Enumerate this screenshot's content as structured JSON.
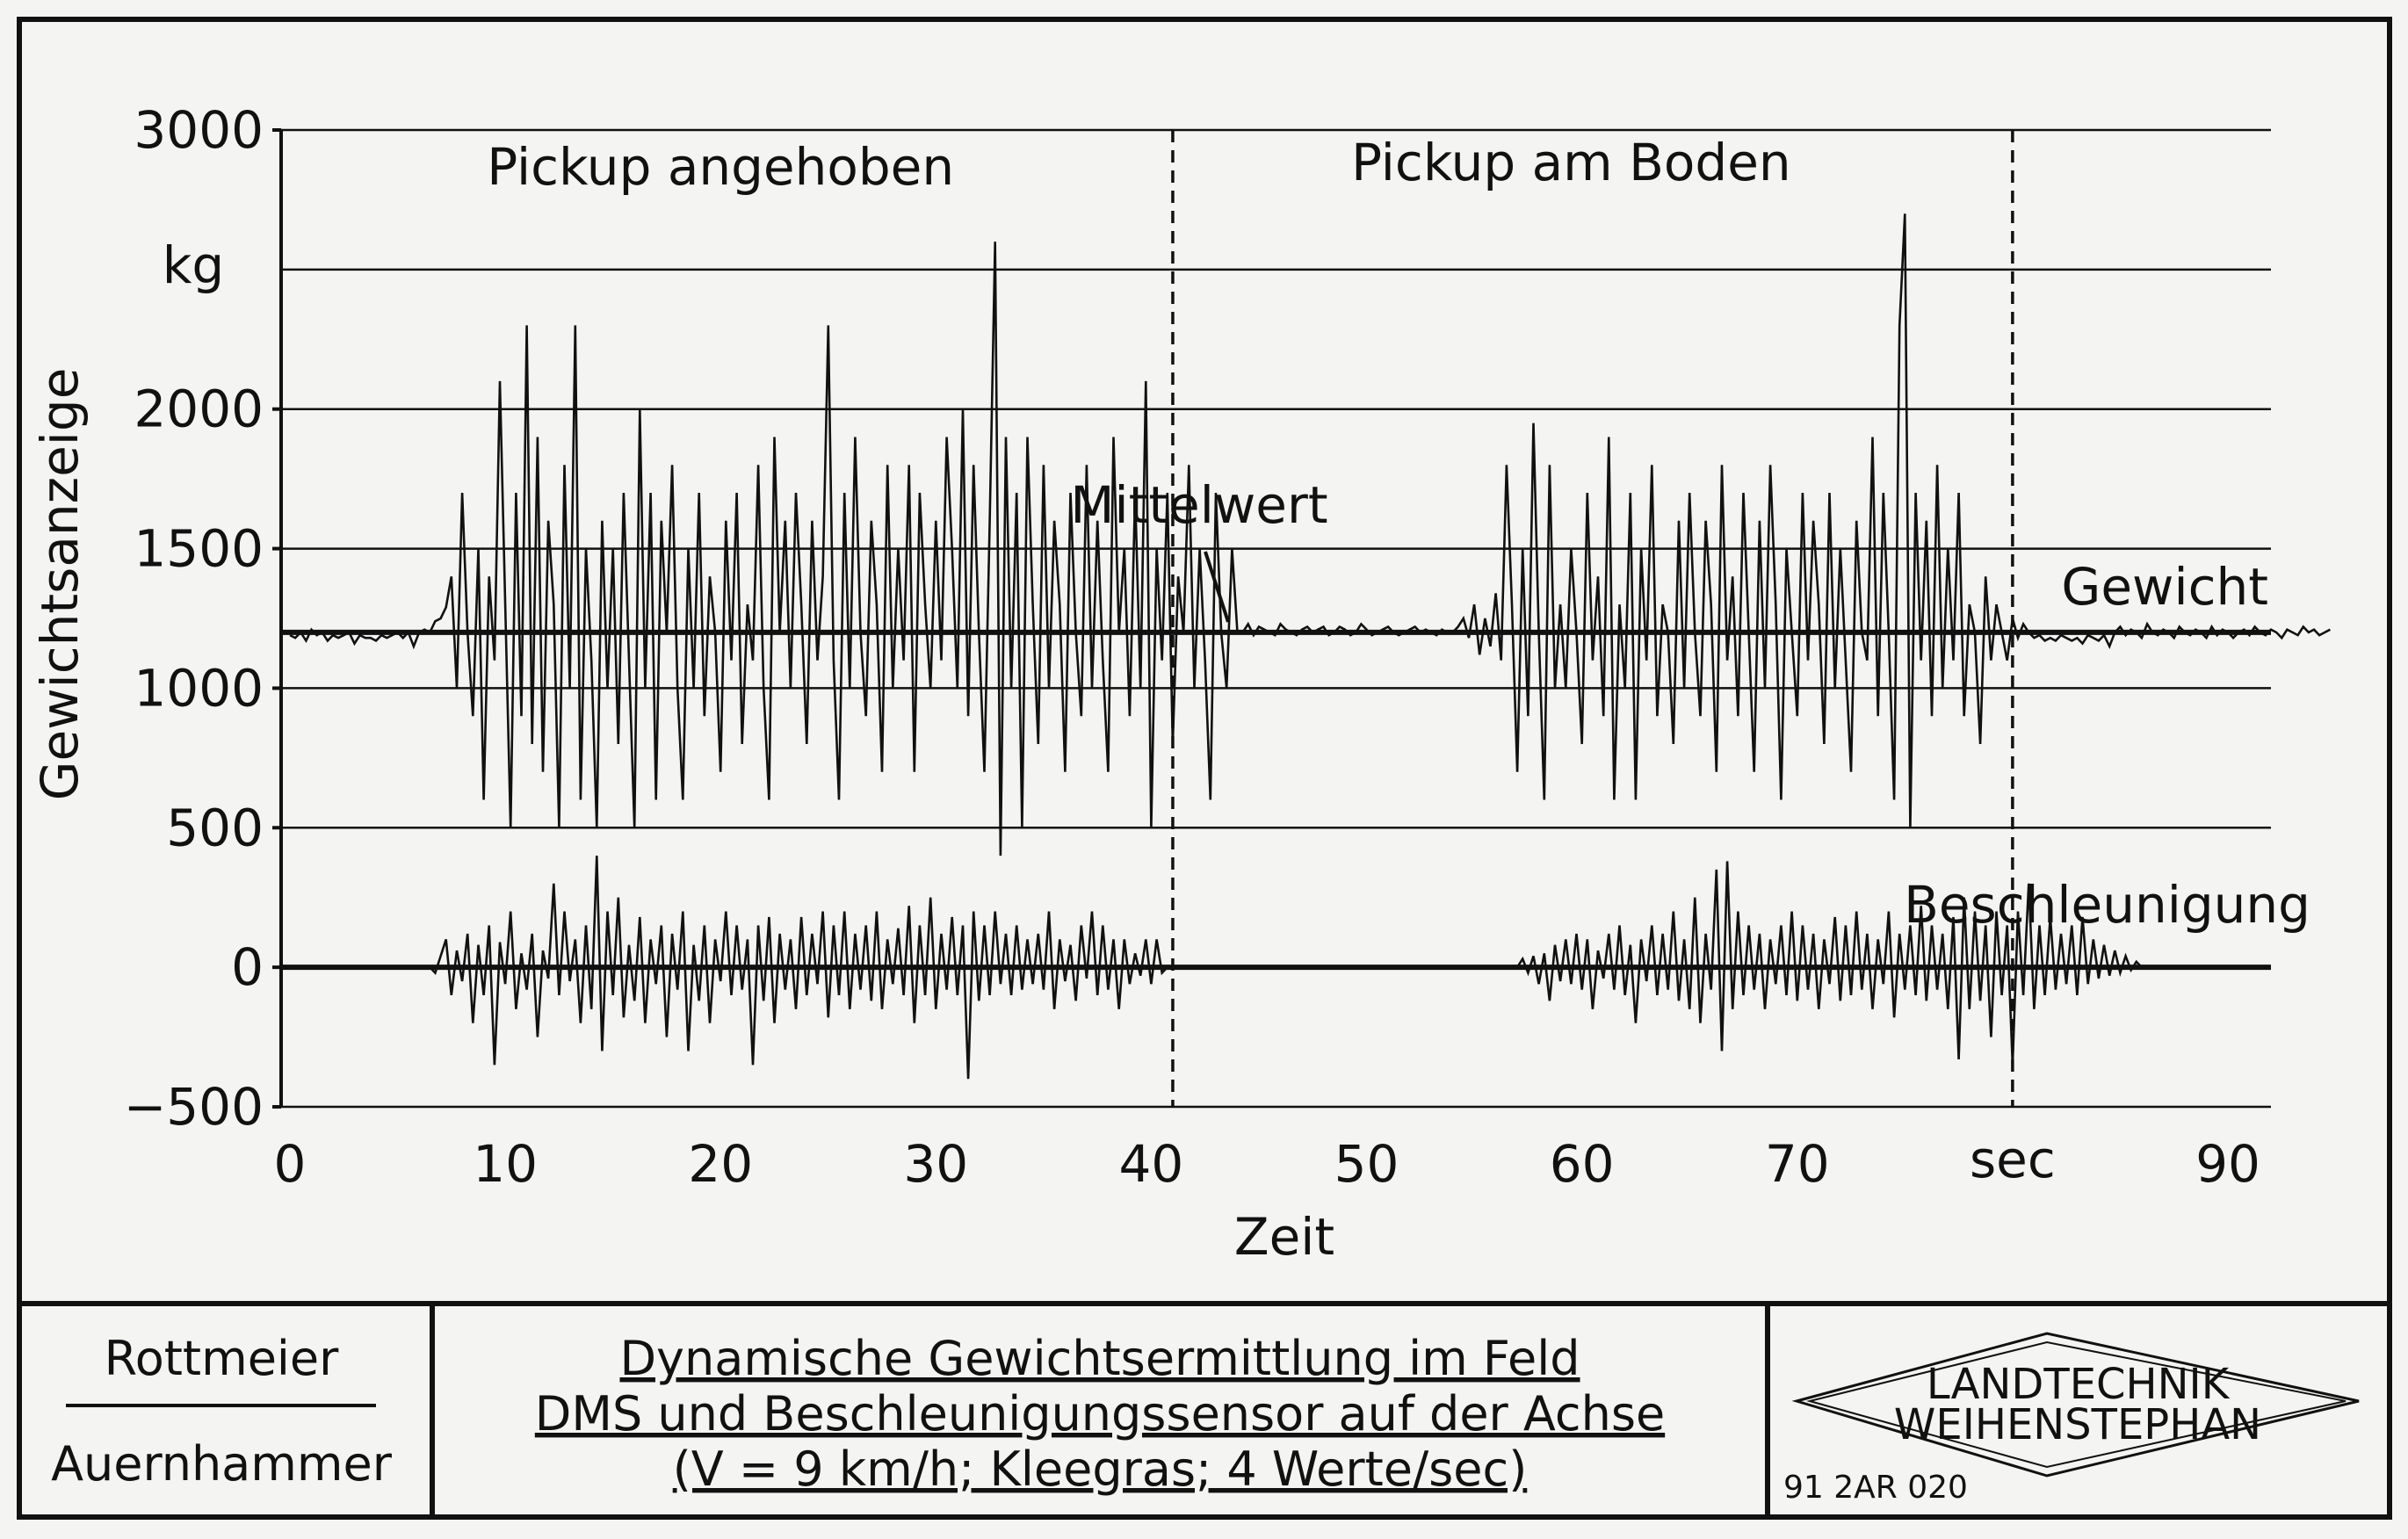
{
  "chart_data": {
    "type": "line",
    "ylabel": "Gewichtsanzeige",
    "yunit": "kg",
    "xlabel": "Zeit",
    "xunit": "sec",
    "ylim": [
      -500,
      3000
    ],
    "xlim": [
      0,
      92
    ],
    "yticks": [
      3000,
      2000,
      1500,
      1000,
      500,
      0,
      -500
    ],
    "ytick_labels": [
      "3000",
      "2000",
      "1500",
      "1000",
      "500",
      "0",
      "−500"
    ],
    "xticks": [
      0,
      10,
      20,
      30,
      40,
      50,
      60,
      70,
      90
    ],
    "xtick_labels": [
      "0",
      "10",
      "20",
      "30",
      "40",
      "50",
      "60",
      "70",
      "90"
    ],
    "xunit_position": 80,
    "gridlines_y": [
      3000,
      2500,
      2000,
      1500,
      1000,
      500,
      0,
      -500
    ],
    "vlines": [
      41,
      80
    ],
    "mean_weight": 1200,
    "phases": [
      {
        "label": "Pickup angehoben",
        "x_center": 20
      },
      {
        "label": "Pickup am Boden",
        "x_center": 59.5
      }
    ],
    "annotations": {
      "mittelwert": "Mittelwert",
      "gewicht": "Gewicht",
      "beschleunigung": "Beschleunigung"
    },
    "series": [
      {
        "name": "Gewicht",
        "x_start": 0,
        "x_step": 0.25,
        "values": [
          1190,
          1180,
          1200,
          1170,
          1210,
          1190,
          1200,
          1170,
          1190,
          1180,
          1190,
          1200,
          1160,
          1190,
          1180,
          1180,
          1170,
          1190,
          1180,
          1190,
          1200,
          1180,
          1200,
          1150,
          1200,
          1210,
          1200,
          1240,
          1250,
          1290,
          1400,
          1000,
          1700,
          1200,
          900,
          1500,
          600,
          1400,
          1100,
          2100,
          1300,
          500,
          1700,
          900,
          2300,
          800,
          1900,
          700,
          1600,
          1300,
          500,
          1800,
          1000,
          2300,
          600,
          1500,
          1100,
          500,
          1600,
          1000,
          1500,
          800,
          1700,
          1100,
          500,
          2000,
          1000,
          1700,
          600,
          1600,
          1200,
          1800,
          1000,
          600,
          1500,
          1000,
          1700,
          900,
          1400,
          1200,
          700,
          1600,
          1100,
          1700,
          800,
          1300,
          1100,
          1800,
          1000,
          600,
          1900,
          1200,
          1600,
          1000,
          1700,
          1300,
          800,
          1600,
          1100,
          1400,
          2300,
          1100,
          600,
          1700,
          1000,
          1900,
          1200,
          900,
          1600,
          1300,
          700,
          1800,
          1000,
          1500,
          1100,
          1800,
          700,
          1700,
          1300,
          1000,
          1600,
          1100,
          1900,
          1500,
          1000,
          2000,
          900,
          1800,
          1200,
          700,
          1600,
          2600,
          400,
          1900,
          1000,
          1700,
          500,
          1900,
          1300,
          800,
          1800,
          1000,
          1600,
          1300,
          700,
          1700,
          1200,
          900,
          1800,
          1000,
          1600,
          1100,
          700,
          1900,
          1200,
          1500,
          900,
          1700,
          1000,
          2100,
          500,
          1500,
          1100,
          1700,
          800,
          1400,
          1200,
          1800,
          1000,
          1500,
          1100,
          600,
          1700,
          1200,
          1000,
          1500,
          1200,
          1200,
          1230,
          1190,
          1220,
          1210,
          1200,
          1190,
          1230,
          1210,
          1200,
          1190,
          1210,
          1220,
          1200,
          1210,
          1220,
          1190,
          1200,
          1220,
          1210,
          1190,
          1200,
          1230,
          1210,
          1190,
          1200,
          1210,
          1220,
          1200,
          1190,
          1200,
          1210,
          1220,
          1200,
          1210,
          1200,
          1190,
          1210,
          1200,
          1200,
          1220,
          1250,
          1180,
          1300,
          1120,
          1250,
          1150,
          1340,
          1100,
          1800,
          1300,
          700,
          1500,
          900,
          1950,
          1200,
          600,
          1800,
          1000,
          1300,
          1000,
          1500,
          1200,
          800,
          1700,
          1100,
          1400,
          900,
          1900,
          600,
          1300,
          1000,
          1700,
          600,
          1500,
          1100,
          1800,
          900,
          1300,
          1200,
          800,
          1600,
          1000,
          1700,
          1200,
          900,
          1600,
          1300,
          700,
          1800,
          1100,
          1400,
          900,
          1700,
          1200,
          700,
          1600,
          1000,
          1800,
          1300,
          600,
          1500,
          1200,
          900,
          1700,
          1100,
          1600,
          1300,
          800,
          1700,
          1000,
          1500,
          1100,
          700,
          1600,
          1200,
          1100,
          1900,
          900,
          1700,
          1200,
          600,
          2300,
          2700,
          500,
          1700,
          1100,
          1600,
          900,
          1800,
          1000,
          1500,
          1100,
          1700,
          900,
          1300,
          1200,
          800,
          1400,
          1100,
          1300,
          1200,
          1100,
          1250,
          1180,
          1230,
          1200,
          1180,
          1190,
          1170,
          1180,
          1170,
          1190,
          1180,
          1170,
          1180,
          1160,
          1190,
          1180,
          1170,
          1190,
          1150,
          1200,
          1220,
          1190,
          1210,
          1200,
          1180,
          1230,
          1200,
          1190,
          1210,
          1200,
          1180,
          1220,
          1200,
          1190,
          1210,
          1200,
          1180,
          1220,
          1190,
          1210,
          1200,
          1180,
          1200,
          1210,
          1190,
          1220,
          1200,
          1190,
          1210,
          1200,
          1180,
          1210,
          1200,
          1190,
          1220,
          1200,
          1210,
          1190,
          1200,
          1210
        ]
      },
      {
        "name": "Beschleunigung",
        "x_start": 6.5,
        "x_step": 0.25,
        "values": [
          0,
          -20,
          40,
          100,
          -100,
          60,
          -50,
          120,
          -200,
          80,
          -100,
          150,
          -350,
          90,
          -60,
          200,
          -150,
          50,
          -80,
          120,
          -250,
          60,
          -40,
          300,
          -100,
          200,
          -50,
          100,
          -200,
          150,
          -150,
          400,
          -300,
          200,
          -100,
          250,
          -180,
          80,
          -120,
          180,
          -200,
          100,
          -60,
          150,
          -250,
          120,
          -80,
          200,
          -300,
          80,
          -120,
          150,
          -200,
          100,
          -50,
          200,
          -100,
          150,
          -80,
          100,
          -350,
          150,
          -120,
          180,
          -200,
          120,
          -80,
          100,
          -150,
          180,
          -100,
          120,
          -60,
          200,
          -180,
          150,
          -100,
          200,
          -150,
          120,
          -80,
          150,
          -120,
          200,
          -150,
          100,
          -60,
          140,
          -100,
          220,
          -200,
          150,
          -100,
          250,
          -150,
          120,
          -80,
          180,
          -100,
          150,
          -400,
          200,
          -120,
          150,
          -100,
          200,
          -60,
          120,
          -100,
          150,
          -80,
          100,
          -60,
          120,
          -80,
          200,
          -150,
          100,
          -50,
          80,
          -120,
          150,
          -40,
          200,
          -100,
          150,
          -80,
          100,
          -150,
          100,
          -60,
          50,
          -30,
          100,
          -60,
          100,
          -20,
          0,
          0,
          0,
          0,
          0,
          0,
          0,
          0,
          0,
          0,
          0,
          0,
          0,
          0,
          0,
          0,
          0,
          0,
          0,
          0,
          0,
          0,
          0,
          0,
          0,
          0,
          0,
          0,
          0,
          0,
          0,
          0,
          0,
          0,
          0,
          0,
          0,
          0,
          0,
          0,
          0,
          0,
          0,
          0,
          0,
          0,
          0,
          0,
          0,
          0,
          0,
          0,
          0,
          0,
          0,
          0,
          0,
          0,
          0,
          0,
          0,
          0,
          0,
          0,
          0,
          0,
          30,
          -20,
          40,
          -60,
          50,
          -120,
          80,
          -50,
          100,
          -60,
          120,
          -80,
          100,
          -150,
          60,
          -40,
          120,
          -80,
          150,
          -100,
          80,
          -200,
          100,
          -50,
          150,
          -100,
          120,
          -80,
          200,
          -120,
          100,
          -150,
          250,
          -200,
          120,
          -80,
          350,
          -300,
          380,
          -150,
          200,
          -100,
          150,
          -80,
          120,
          -150,
          100,
          -60,
          150,
          -100,
          200,
          -120,
          150,
          -80,
          120,
          -150,
          100,
          -60,
          180,
          -120,
          150,
          -100,
          200,
          -80,
          120,
          -150,
          100,
          -60,
          200,
          -180,
          120,
          -80,
          150,
          -100,
          220,
          -120,
          150,
          -80,
          120,
          -150,
          180,
          -330,
          250,
          -150,
          200,
          -120,
          150,
          -250,
          200,
          -100,
          150,
          -350,
          200,
          -100,
          300,
          -150,
          150,
          -100,
          180,
          -80,
          120,
          -60,
          150,
          -100,
          180,
          -60,
          100,
          -40,
          80,
          -30,
          60,
          -20,
          40,
          -10,
          20,
          0,
          0
        ]
      }
    ]
  },
  "footer": {
    "author1": "Rottmeier",
    "author2": "Auernhammer",
    "title_line1": "Dynamische Gewichtsermittlung im Feld",
    "title_line2": "DMS und Beschleunigungssensor auf der Achse",
    "title_line3": "(V = 9 km/h; Kleegras; 4 Werte/sec)",
    "logo_line1": "LANDTECHNIK",
    "logo_line2": "WEIHENSTEPHAN",
    "code": "91 2AR 020"
  }
}
